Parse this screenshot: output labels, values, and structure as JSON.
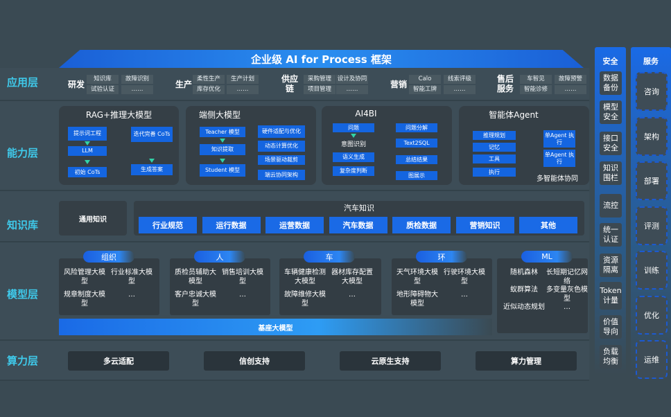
{
  "title": "企业级 AI for Process 框架",
  "layers": {
    "app": "应用层",
    "capability": "能力层",
    "knowledge": "知识库",
    "model": "模型层",
    "compute": "算力层"
  },
  "app_groups": [
    {
      "name": "研发",
      "items": [
        "知识库",
        "故障识别",
        "试验认证",
        "……"
      ]
    },
    {
      "name": "生产",
      "items": [
        "柔性生产",
        "生产计划",
        "库存优化",
        "……"
      ]
    },
    {
      "name": "供应链",
      "items": [
        "采购管理",
        "设计及协同",
        "项目管理",
        "……"
      ]
    },
    {
      "name": "营销",
      "items": [
        "Calo",
        "线索评级",
        "智能工牌",
        "……"
      ]
    },
    {
      "name": "售后服务",
      "items": [
        "车智见",
        "故障预警",
        "智能诊修",
        "……"
      ]
    }
  ],
  "capability": {
    "rag": {
      "title": "RAG+推理大模型",
      "boxes": [
        "提示词工程",
        "LLM",
        "初始 CoTs",
        "迭代完善 CoTs",
        "生成答案"
      ]
    },
    "edge": {
      "title": "端侧大模型",
      "boxes": [
        "Teacher 模型",
        "知识提取",
        "Student 模型",
        "硬件适配与优化",
        "动态计算优化",
        "场景驱动裁剪",
        "端云协同架构"
      ]
    },
    "ai4bi": {
      "title": "AI4BI",
      "left": [
        "问题",
        "意图识别",
        "语义生成",
        "复杂度判断"
      ],
      "right": [
        "问题分解",
        "Text2SQL",
        "总结结果",
        "图展示"
      ]
    },
    "agent": {
      "title": "智能体Agent",
      "boxes": [
        "推理规划",
        "记忆",
        "工具",
        "执行"
      ],
      "exec": [
        "单Agent 执行",
        "单Agent 执行"
      ],
      "footer": "多智能体协同"
    }
  },
  "knowledge": {
    "general": "通用知识",
    "auto_title": "汽车知识",
    "items": [
      "行业规范",
      "运行数据",
      "运营数据",
      "汽车数据",
      "质检数据",
      "营销知识",
      "其他"
    ]
  },
  "models": [
    {
      "name": "组织",
      "items": [
        "风险管理大模型",
        "行业标准大模型",
        "规章制度大模型",
        "…"
      ]
    },
    {
      "name": "人",
      "items": [
        "质检员辅助大模型",
        "销售培训大模型",
        "客户忠诚大模型",
        "…"
      ]
    },
    {
      "name": "车",
      "items": [
        "车辆健康检测大模型",
        "器材库存配置大模型",
        "故障维修大模型",
        "…"
      ]
    },
    {
      "name": "环",
      "items": [
        "天气环境大模型",
        "行驶环境大模型",
        "地形障碍物大模型",
        "…"
      ]
    },
    {
      "name": "ML",
      "items": [
        "随机森林",
        "长短期记忆网络",
        "蚁群算法",
        "多变量灰色模型",
        "近似动态规划",
        "…"
      ]
    }
  ],
  "base_model": "基座大模型",
  "compute": [
    "多云适配",
    "信创支持",
    "云原生支持",
    "算力管理"
  ],
  "security": {
    "title": "安全",
    "items": [
      "数据备份",
      "模型安全",
      "接口安全",
      "知识围栏",
      "流控",
      "统一认证",
      "资源隔离",
      "Token计量",
      "价值导向",
      "负载均衡"
    ]
  },
  "service": {
    "title": "服务",
    "items": [
      "咨询",
      "架构",
      "部署",
      "评测",
      "训练",
      "优化",
      "运维"
    ]
  },
  "colors": {
    "accent": "#1a6ae6",
    "label": "#3fc9ea",
    "background": "#3a4a53"
  }
}
